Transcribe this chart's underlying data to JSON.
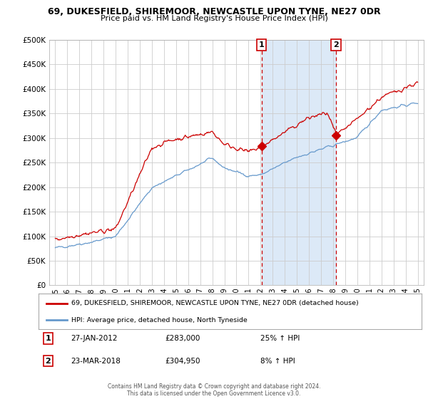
{
  "title": "69, DUKESFIELD, SHIREMOOR, NEWCASTLE UPON TYNE, NE27 0DR",
  "subtitle": "Price paid vs. HM Land Registry's House Price Index (HPI)",
  "legend_line1": "69, DUKESFIELD, SHIREMOOR, NEWCASTLE UPON TYNE, NE27 0DR (detached house)",
  "legend_line2": "HPI: Average price, detached house, North Tyneside",
  "sale1_date": "27-JAN-2012",
  "sale1_price": "£283,000",
  "sale1_hpi": "25% ↑ HPI",
  "sale2_date": "23-MAR-2018",
  "sale2_price": "£304,950",
  "sale2_hpi": "8% ↑ HPI",
  "sale1_x": 2012.07,
  "sale2_x": 2018.23,
  "sale1_y": 283000,
  "sale2_y": 304950,
  "shade_color": "#dce9f7",
  "red_line_color": "#cc0000",
  "blue_line_color": "#6699cc",
  "dashed_vline_color": "#cc0000",
  "background_color": "#ffffff",
  "grid_color": "#cccccc",
  "xlim": [
    1994.5,
    2025.5
  ],
  "ylim": [
    0,
    500000
  ],
  "yticks": [
    0,
    50000,
    100000,
    150000,
    200000,
    250000,
    300000,
    350000,
    400000,
    450000,
    500000
  ],
  "xticks": [
    1995,
    1996,
    1997,
    1998,
    1999,
    2000,
    2001,
    2002,
    2003,
    2004,
    2005,
    2006,
    2007,
    2008,
    2009,
    2010,
    2011,
    2012,
    2013,
    2014,
    2015,
    2016,
    2017,
    2018,
    2019,
    2020,
    2021,
    2022,
    2023,
    2024,
    2025
  ],
  "footer": "Contains HM Land Registry data © Crown copyright and database right 2024.\nThis data is licensed under the Open Government Licence v3.0."
}
